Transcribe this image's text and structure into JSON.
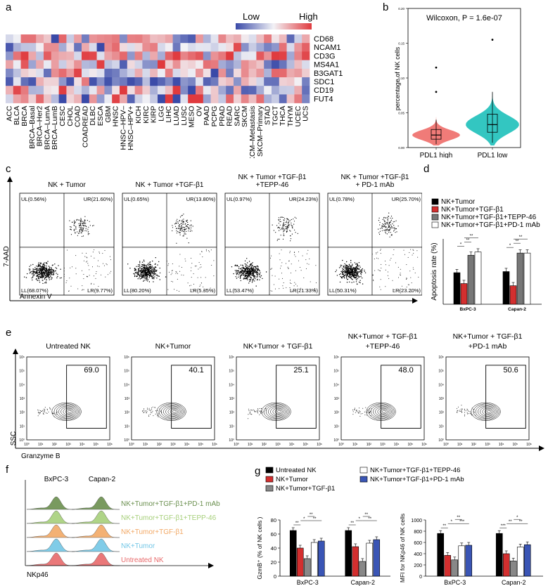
{
  "panels": {
    "a": "a",
    "b": "b",
    "c": "c",
    "d": "d",
    "e": "e",
    "f": "f",
    "g": "g"
  },
  "panel_a": {
    "legend_low": "Low",
    "legend_high": "High",
    "genes": [
      "CD68",
      "NCAM1",
      "CD3G",
      "MS4A1",
      "B3GAT1",
      "SDC1",
      "CD19",
      "FUT4"
    ],
    "cancers": [
      "ACC",
      "BLCA",
      "BRCA",
      "BRCA–Basal",
      "BRCA–Her2",
      "BRCA–LumA",
      "BRCA–LumB",
      "CESC",
      "CHOL",
      "COAD",
      "COADREAD",
      "DLBC",
      "ESCA",
      "GBM",
      "HNSC",
      "HNSC–HPV–",
      "HNSC–HPV+",
      "KICH",
      "KIRC",
      "KIRP",
      "LGG",
      "LIHC",
      "LUAD",
      "LUSC",
      "MESO",
      "OV",
      "PAAD",
      "PCPG",
      "PRAD",
      "READ",
      "SARC",
      "SKCM",
      "SKCM–Metastasis",
      "SKCM–Primary",
      "STAD",
      "TGCT",
      "THCA",
      "THYM",
      "UCEC",
      "UCS"
    ],
    "colors": {
      "low": "#3a4aa8",
      "mid": "#f2f2f6",
      "high": "#e03a3e"
    }
  },
  "chart_data": [
    {
      "type": "violin",
      "title": "Wilcoxon, P = 1.6e-07",
      "ylabel": "percentage of NK cells",
      "categories": [
        "PDL1 high",
        "PDL1 low"
      ],
      "yticks": [
        "0.00",
        "0.05",
        "0.10",
        "0.15",
        "0.20"
      ],
      "ylim": [
        0,
        0.2
      ],
      "box": [
        {
          "group": "PDL1 high",
          "q1": 0.012,
          "median": 0.018,
          "q3": 0.026,
          "whisker_low": 0.005,
          "whisker_high": 0.04,
          "outliers": [
            0.115,
            0.08
          ],
          "color": "#f07b78"
        },
        {
          "group": "PDL1 low",
          "q1": 0.022,
          "median": 0.033,
          "q3": 0.048,
          "whisker_low": 0.007,
          "whisker_high": 0.08,
          "outliers": [
            0.155
          ],
          "color": "#33c6c1"
        }
      ]
    },
    {
      "type": "flow_quadrant",
      "xlabel": "Annexin V",
      "ylabel": "7-AAD",
      "plots": [
        {
          "title": "NK + Tumor",
          "UL": "UL(0.56%)",
          "UR": "UR(21.60%)",
          "LL": "LL(68.07%)",
          "LR": "LR(9.77%)"
        },
        {
          "title": "NK + Tumor +TGF-β1",
          "UL": "UL(0.65%)",
          "UR": "UR(13.80%)",
          "LL": "LL(80.20%)",
          "LR": "LR(5.35%)"
        },
        {
          "title": "NK + Tumor +TGF-β1 +TEPP-46",
          "UL": "UL(0.97%)",
          "UR": "UR(24.23%)",
          "LL": "LL(53.47%)",
          "LR": "LR(21.33%)"
        },
        {
          "title": "NK + Tumor +TGF-β1 + PD-1 mAb",
          "UL": "UL(0.78%)",
          "UR": "UR(25.70%)",
          "LL": "LL(50.31%)",
          "LR": "LR(23.20%)"
        }
      ]
    },
    {
      "type": "bar",
      "ylabel": "Apoptosis rate (%)",
      "categories": [
        "BxPC-3",
        "Capan-2"
      ],
      "ylim": [
        0,
        60
      ],
      "series": [
        {
          "name": "NK+Tumor",
          "values": [
            29,
            30
          ],
          "color": "#000000"
        },
        {
          "name": "NK+Tumor+TGF-β1",
          "values": [
            19,
            17
          ],
          "color": "#d32f2f"
        },
        {
          "name": "NK+Tumor+TGF-β1+TEPP-46",
          "values": [
            45,
            47
          ],
          "color": "#777777"
        },
        {
          "name": "NK+Tumor+TGF-β1+PD-1 mAb",
          "values": [
            48,
            47
          ],
          "color": "#ffffff"
        }
      ],
      "significance": [
        "*",
        "**",
        "**",
        "*",
        "**",
        "**"
      ]
    },
    {
      "type": "flow_gate",
      "xlabel": "Granzyme B",
      "ylabel": "SSC",
      "ticks": [
        "10⁰",
        "10¹",
        "10²",
        "10³",
        "10⁴",
        "10⁵",
        "10⁶"
      ],
      "plots": [
        {
          "title": "Untreated NK",
          "value": "69.0"
        },
        {
          "title": "NK+Tumor",
          "value": "40.1"
        },
        {
          "title": "NK+Tumor + TGF-β1",
          "value": "25.1"
        },
        {
          "title": "NK+Tumor + TGF-β1 +TEPP-46",
          "value": "48.0"
        },
        {
          "title": "NK+Tumor + TGF-β1 +PD-1 mAb",
          "value": "50.6"
        }
      ]
    },
    {
      "type": "histogram_overlay",
      "xlabel": "NKp46",
      "columns": [
        "BxPC-3",
        "Capan-2"
      ],
      "tracks": [
        {
          "name": "NK+Tumor+TGF-β1+PD-1 mAb",
          "color": "#6a8f4e"
        },
        {
          "name": "NK+Tumor+TGF-β1+TEPP-46",
          "color": "#a6cf7a"
        },
        {
          "name": "NK+Tumor+TGF-β1",
          "color": "#f2a865"
        },
        {
          "name": "NK+Tumor",
          "color": "#72c6e6"
        },
        {
          "name": "Untreated NK",
          "color": "#e8696a"
        }
      ]
    },
    {
      "type": "bar",
      "ylabel": "GzmB⁺ (% of NK cells )",
      "categories": [
        "BxPC-3",
        "Capan-2"
      ],
      "ylim": [
        0,
        80
      ],
      "yticks": [
        "0",
        "20",
        "40",
        "60",
        "80"
      ],
      "series": [
        {
          "name": "Untreated NK",
          "values": [
            65,
            65
          ],
          "color": "#000000"
        },
        {
          "name": "NK+Tumor",
          "values": [
            40,
            42
          ],
          "color": "#d32f2f"
        },
        {
          "name": "NK+Tumor+TGF-β1",
          "values": [
            25,
            21
          ],
          "color": "#888888"
        },
        {
          "name": "NK+Tumor+TGF-β1+TEPP-46",
          "values": [
            48,
            47
          ],
          "color": "#ffffff"
        },
        {
          "name": "NK+Tumor+TGF-β1+PD-1 mAb",
          "values": [
            50,
            52
          ],
          "color": "#3a55b5"
        }
      ],
      "significance": [
        "**",
        "*",
        "**",
        "**",
        "**",
        "*",
        "**",
        "**"
      ]
    },
    {
      "type": "bar",
      "ylabel": "MFI for NKp46 of NK cells",
      "categories": [
        "BxPC-3",
        "Capan-2"
      ],
      "ylim": [
        0,
        1000
      ],
      "yticks": [
        "0",
        "200",
        "400",
        "600",
        "800",
        "1000"
      ],
      "series": [
        {
          "name": "Untreated NK",
          "values": [
            760,
            760
          ],
          "color": "#000000"
        },
        {
          "name": "NK+Tumor",
          "values": [
            370,
            400
          ],
          "color": "#d32f2f"
        },
        {
          "name": "NK+Tumor+TGF-β1",
          "values": [
            290,
            270
          ],
          "color": "#888888"
        },
        {
          "name": "NK+Tumor+TGF-β1+TEPP-46",
          "values": [
            540,
            520
          ],
          "color": "#ffffff"
        },
        {
          "name": "NK+Tumor+TGF-β1+PD-1 mAb",
          "values": [
            550,
            560
          ],
          "color": "#3a55b5"
        }
      ],
      "significance": [
        "**",
        "*",
        "**",
        "***",
        "***",
        "**",
        "*",
        "**",
        "**"
      ]
    }
  ]
}
